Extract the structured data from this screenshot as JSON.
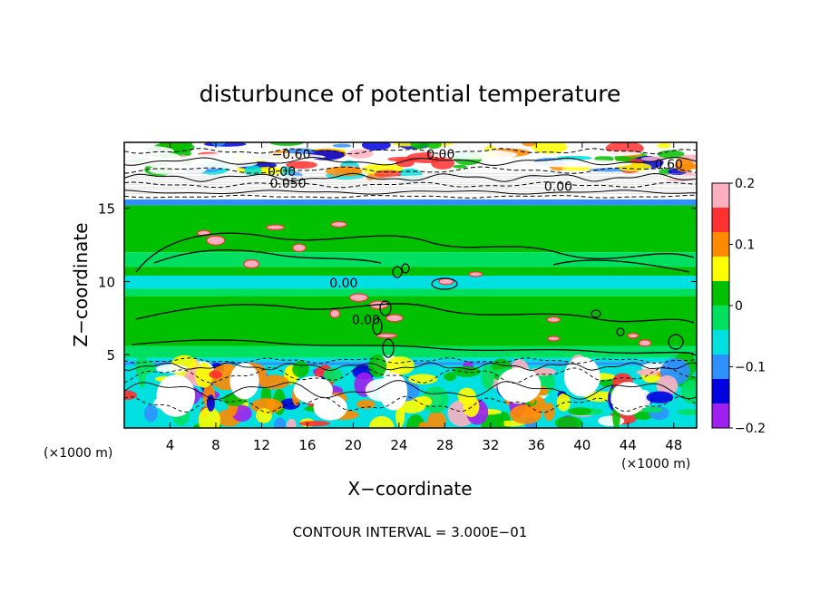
{
  "chart_data": {
    "type": "heatmap",
    "title": "disturbunce of potential temperature",
    "xlabel": "X−coordinate",
    "ylabel": "Z−coordinate",
    "x_unit": "(×1000 m)",
    "z_unit": "(×1000 m)",
    "xlim": [
      0,
      50
    ],
    "ylim": [
      0,
      19.5
    ],
    "x_ticks": [
      4,
      8,
      12,
      16,
      20,
      24,
      28,
      32,
      36,
      40,
      44,
      48
    ],
    "y_ticks": [
      5,
      10,
      15
    ],
    "colorbar": {
      "range": [
        -0.2,
        0.2
      ],
      "tick_values": [
        0.2,
        0.1,
        0,
        -0.1,
        -0.2
      ],
      "tick_labels": [
        "0.2",
        "0.1",
        "0",
        "−0.1",
        "−0.2"
      ],
      "colors": [
        "#ffb0c0",
        "#ff3030",
        "#ff8a00",
        "#ffff00",
        "#00c000",
        "#00e060",
        "#00e0e0",
        "#3090ff",
        "#0000e0",
        "#a020f0"
      ]
    },
    "contour_labels": [
      {
        "text": "0.00",
        "x": 27.6,
        "z": 9.6
      },
      {
        "text": "0.00",
        "x": 30.4,
        "z": 7.1
      },
      {
        "text": "0.00",
        "x": 39.8,
        "z": 18.4
      },
      {
        "text": "0.00",
        "x": 54.6,
        "z": 16.2
      },
      {
        "text": "−0.60",
        "x": 21.0,
        "z": 18.4
      },
      {
        "text": "0.60",
        "x": 68.5,
        "z": 17.7
      },
      {
        "text": "0.00",
        "x": 19.8,
        "z": 17.2
      },
      {
        "text": "0.050",
        "x": 20.6,
        "z": 16.4
      }
    ],
    "footer": "CONTOUR INTERVAL = 3.000E−01"
  }
}
